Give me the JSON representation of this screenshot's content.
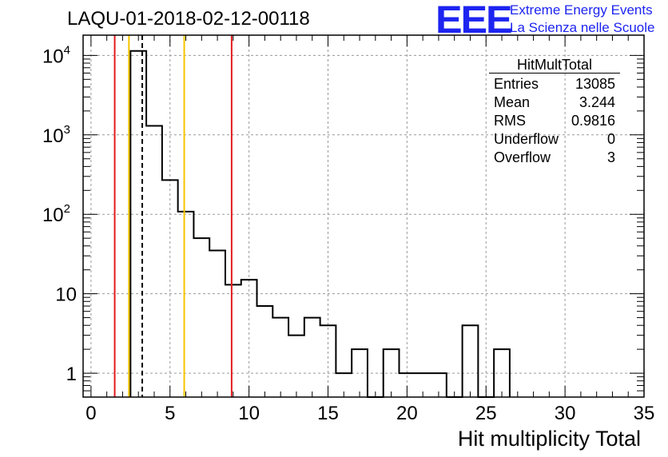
{
  "header": {
    "run_title": "LAQU-01-2018-02-12-00118",
    "logo_text": "EEE",
    "logo_line1": "Extreme Energy Events",
    "logo_line2": "La Scienza nelle Scuole",
    "logo_color": "#1d24f0"
  },
  "stats_box": {
    "title": "HitMultTotal",
    "rows": [
      {
        "label": "Entries",
        "value": "13085"
      },
      {
        "label": "Mean",
        "value": "3.244"
      },
      {
        "label": "RMS",
        "value": "0.9816"
      },
      {
        "label": "Underflow",
        "value": "0"
      },
      {
        "label": "Overflow",
        "value": "3"
      }
    ]
  },
  "chart_data": {
    "type": "histogram",
    "title": "LAQU-01-2018-02-12-00118",
    "xlabel": "Hit multiplicity Total",
    "ylabel": "",
    "xlim": [
      -0.5,
      35
    ],
    "ylim": [
      0.5,
      18000
    ],
    "yscale": "log",
    "grid": true,
    "bin_width": 1,
    "bins": [
      {
        "low": 2.5,
        "high": 3.5,
        "count": 11400
      },
      {
        "low": 3.5,
        "high": 4.5,
        "count": 1300
      },
      {
        "low": 4.5,
        "high": 5.5,
        "count": 270
      },
      {
        "low": 5.5,
        "high": 6.5,
        "count": 108
      },
      {
        "low": 6.5,
        "high": 7.5,
        "count": 50
      },
      {
        "low": 7.5,
        "high": 8.5,
        "count": 35
      },
      {
        "low": 8.5,
        "high": 9.5,
        "count": 13
      },
      {
        "low": 9.5,
        "high": 10.5,
        "count": 15
      },
      {
        "low": 10.5,
        "high": 11.5,
        "count": 7
      },
      {
        "low": 11.5,
        "high": 12.5,
        "count": 5
      },
      {
        "low": 12.5,
        "high": 13.5,
        "count": 3
      },
      {
        "low": 13.5,
        "high": 14.5,
        "count": 5
      },
      {
        "low": 14.5,
        "high": 15.5,
        "count": 4
      },
      {
        "low": 15.5,
        "high": 16.5,
        "count": 1
      },
      {
        "low": 16.5,
        "high": 17.5,
        "count": 2
      },
      {
        "low": 17.5,
        "high": 18.5,
        "count": 0
      },
      {
        "low": 18.5,
        "high": 19.5,
        "count": 2
      },
      {
        "low": 19.5,
        "high": 20.5,
        "count": 1
      },
      {
        "low": 20.5,
        "high": 21.5,
        "count": 1
      },
      {
        "low": 21.5,
        "high": 22.5,
        "count": 1
      },
      {
        "low": 22.5,
        "high": 23.5,
        "count": 0
      },
      {
        "low": 23.5,
        "high": 24.5,
        "count": 4
      },
      {
        "low": 24.5,
        "high": 25.5,
        "count": 0
      },
      {
        "low": 25.5,
        "high": 26.5,
        "count": 2
      }
    ],
    "x_ticks": [
      {
        "value": 0,
        "label": "0"
      },
      {
        "value": 5,
        "label": "5"
      },
      {
        "value": 10,
        "label": "10"
      },
      {
        "value": 15,
        "label": "15"
      },
      {
        "value": 20,
        "label": "20"
      },
      {
        "value": 25,
        "label": "25"
      },
      {
        "value": 30,
        "label": "30"
      },
      {
        "value": 35,
        "label": "35"
      }
    ],
    "y_ticks": [
      {
        "value": 1,
        "base": "1",
        "exp": ""
      },
      {
        "value": 10,
        "base": "10",
        "exp": ""
      },
      {
        "value": 100,
        "base": "10",
        "exp": "2"
      },
      {
        "value": 1000,
        "base": "10",
        "exp": "3"
      },
      {
        "value": 10000,
        "base": "10",
        "exp": "4"
      }
    ],
    "vertical_lines": [
      {
        "x": 1.5,
        "color": "#e31a1c",
        "style": "solid"
      },
      {
        "x": 2.4,
        "color": "#f5c400",
        "style": "solid"
      },
      {
        "x": 3.244,
        "color": "#000000",
        "style": "dashed"
      },
      {
        "x": 5.9,
        "color": "#f5c400",
        "style": "solid"
      },
      {
        "x": 8.9,
        "color": "#e31a1c",
        "style": "solid"
      }
    ]
  }
}
